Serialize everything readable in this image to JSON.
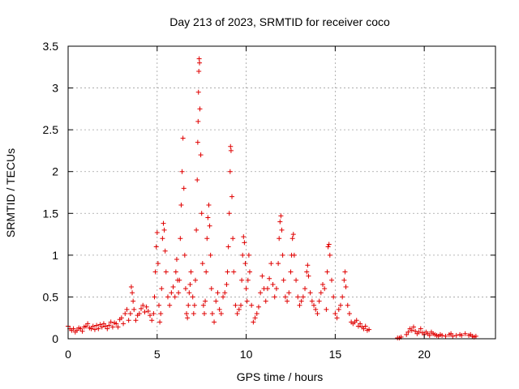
{
  "chart_data": {
    "type": "scatter",
    "title": "Day 213 of 2023, SRMTID for receiver coco",
    "xlabel": "GPS time / hours",
    "ylabel": "SRMTID / TECUs",
    "xlim": [
      0,
      24
    ],
    "ylim": [
      0,
      3.5
    ],
    "xticks": [
      0,
      5,
      10,
      15,
      20
    ],
    "xtick_labels": [
      "0",
      "5",
      "10",
      "15",
      "20"
    ],
    "yticks": [
      0,
      0.5,
      1,
      1.5,
      2,
      2.5,
      3,
      3.5
    ],
    "ytick_labels": [
      "0",
      "0.5",
      "1",
      "1.5",
      "2",
      "2.5",
      "3",
      "3.5"
    ],
    "grid": true,
    "marker": "+",
    "marker_color": "#e00000",
    "series": [
      {
        "name": "SRMTID",
        "points": [
          [
            0.0,
            0.15
          ],
          [
            0.1,
            0.12
          ],
          [
            0.2,
            0.1
          ],
          [
            0.3,
            0.12
          ],
          [
            0.4,
            0.08
          ],
          [
            0.5,
            0.1
          ],
          [
            0.6,
            0.13
          ],
          [
            0.7,
            0.12
          ],
          [
            0.8,
            0.09
          ],
          [
            0.9,
            0.14
          ],
          [
            1.0,
            0.15
          ],
          [
            1.1,
            0.18
          ],
          [
            1.2,
            0.13
          ],
          [
            1.3,
            0.12
          ],
          [
            1.4,
            0.15
          ],
          [
            1.5,
            0.11
          ],
          [
            1.6,
            0.16
          ],
          [
            1.7,
            0.12
          ],
          [
            1.8,
            0.17
          ],
          [
            1.9,
            0.14
          ],
          [
            2.0,
            0.18
          ],
          [
            2.1,
            0.15
          ],
          [
            2.2,
            0.12
          ],
          [
            2.3,
            0.16
          ],
          [
            2.4,
            0.2
          ],
          [
            2.5,
            0.14
          ],
          [
            2.6,
            0.19
          ],
          [
            2.7,
            0.18
          ],
          [
            2.8,
            0.14
          ],
          [
            2.9,
            0.23
          ],
          [
            3.0,
            0.25
          ],
          [
            3.1,
            0.18
          ],
          [
            3.2,
            0.3
          ],
          [
            3.3,
            0.35
          ],
          [
            3.4,
            0.22
          ],
          [
            3.5,
            0.3
          ],
          [
            3.55,
            0.62
          ],
          [
            3.6,
            0.55
          ],
          [
            3.65,
            0.45
          ],
          [
            3.7,
            0.35
          ],
          [
            3.8,
            0.22
          ],
          [
            3.9,
            0.28
          ],
          [
            4.0,
            0.3
          ],
          [
            4.1,
            0.36
          ],
          [
            4.2,
            0.4
          ],
          [
            4.3,
            0.32
          ],
          [
            4.4,
            0.38
          ],
          [
            4.5,
            0.33
          ],
          [
            4.6,
            0.28
          ],
          [
            4.7,
            0.22
          ],
          [
            4.8,
            0.3
          ],
          [
            4.85,
            0.5
          ],
          [
            4.9,
            0.8
          ],
          [
            4.95,
            1.1
          ],
          [
            5.0,
            1.27
          ],
          [
            5.05,
            0.9
          ],
          [
            5.1,
            0.4
          ],
          [
            5.15,
            0.2
          ],
          [
            5.2,
            0.3
          ],
          [
            5.25,
            0.6
          ],
          [
            5.3,
            1.2
          ],
          [
            5.35,
            1.38
          ],
          [
            5.4,
            1.3
          ],
          [
            5.45,
            1.05
          ],
          [
            5.5,
            0.8
          ],
          [
            5.6,
            0.5
          ],
          [
            5.7,
            0.4
          ],
          [
            5.8,
            0.55
          ],
          [
            5.9,
            0.62
          ],
          [
            6.0,
            0.5
          ],
          [
            6.05,
            0.8
          ],
          [
            6.1,
            0.95
          ],
          [
            6.15,
            0.7
          ],
          [
            6.2,
            0.55
          ],
          [
            6.25,
            0.7
          ],
          [
            6.3,
            1.2
          ],
          [
            6.35,
            1.6
          ],
          [
            6.4,
            2.0
          ],
          [
            6.45,
            2.4
          ],
          [
            6.5,
            1.8
          ],
          [
            6.55,
            1.0
          ],
          [
            6.6,
            0.6
          ],
          [
            6.65,
            0.3
          ],
          [
            6.7,
            0.25
          ],
          [
            6.75,
            0.4
          ],
          [
            6.8,
            0.55
          ],
          [
            6.85,
            0.65
          ],
          [
            6.9,
            0.8
          ],
          [
            7.0,
            0.5
          ],
          [
            7.05,
            0.3
          ],
          [
            7.1,
            0.4
          ],
          [
            7.15,
            0.7
          ],
          [
            7.2,
            1.3
          ],
          [
            7.25,
            1.9
          ],
          [
            7.28,
            2.35
          ],
          [
            7.3,
            2.6
          ],
          [
            7.32,
            2.95
          ],
          [
            7.34,
            3.2
          ],
          [
            7.36,
            3.35
          ],
          [
            7.38,
            3.3
          ],
          [
            7.4,
            2.75
          ],
          [
            7.45,
            2.2
          ],
          [
            7.5,
            1.5
          ],
          [
            7.55,
            0.9
          ],
          [
            7.6,
            0.4
          ],
          [
            7.65,
            0.3
          ],
          [
            7.7,
            0.45
          ],
          [
            7.75,
            0.8
          ],
          [
            7.8,
            1.2
          ],
          [
            7.85,
            1.45
          ],
          [
            7.9,
            1.6
          ],
          [
            7.95,
            1.35
          ],
          [
            8.0,
            1.0
          ],
          [
            8.05,
            0.6
          ],
          [
            8.1,
            0.3
          ],
          [
            8.2,
            0.2
          ],
          [
            8.3,
            0.45
          ],
          [
            8.4,
            0.55
          ],
          [
            8.5,
            0.35
          ],
          [
            8.6,
            0.3
          ],
          [
            8.7,
            0.5
          ],
          [
            8.8,
            0.55
          ],
          [
            8.9,
            0.65
          ],
          [
            8.95,
            0.8
          ],
          [
            9.0,
            1.1
          ],
          [
            9.05,
            1.5
          ],
          [
            9.1,
            2.0
          ],
          [
            9.12,
            2.3
          ],
          [
            9.15,
            2.25
          ],
          [
            9.2,
            1.7
          ],
          [
            9.25,
            1.2
          ],
          [
            9.3,
            0.8
          ],
          [
            9.4,
            0.4
          ],
          [
            9.5,
            0.3
          ],
          [
            9.6,
            0.35
          ],
          [
            9.7,
            0.4
          ],
          [
            9.75,
            0.7
          ],
          [
            9.8,
            1.0
          ],
          [
            9.85,
            1.22
          ],
          [
            9.9,
            1.15
          ],
          [
            9.95,
            0.9
          ],
          [
            10.0,
            0.6
          ],
          [
            10.05,
            0.45
          ],
          [
            10.1,
            0.7
          ],
          [
            10.15,
            1.0
          ],
          [
            10.2,
            0.8
          ],
          [
            10.3,
            0.4
          ],
          [
            10.4,
            0.2
          ],
          [
            10.5,
            0.25
          ],
          [
            10.6,
            0.3
          ],
          [
            10.7,
            0.38
          ],
          [
            10.8,
            0.55
          ],
          [
            10.9,
            0.75
          ],
          [
            11.0,
            0.6
          ],
          [
            11.1,
            0.45
          ],
          [
            11.2,
            0.6
          ],
          [
            11.3,
            0.72
          ],
          [
            11.4,
            0.9
          ],
          [
            11.5,
            0.65
          ],
          [
            11.6,
            0.5
          ],
          [
            11.7,
            0.6
          ],
          [
            11.8,
            0.9
          ],
          [
            11.85,
            1.2
          ],
          [
            11.9,
            1.4
          ],
          [
            11.95,
            1.47
          ],
          [
            12.0,
            1.3
          ],
          [
            12.05,
            1.0
          ],
          [
            12.1,
            0.7
          ],
          [
            12.2,
            0.5
          ],
          [
            12.3,
            0.45
          ],
          [
            12.4,
            0.55
          ],
          [
            12.5,
            0.8
          ],
          [
            12.55,
            1.0
          ],
          [
            12.6,
            1.2
          ],
          [
            12.65,
            1.25
          ],
          [
            12.7,
            1.0
          ],
          [
            12.8,
            0.7
          ],
          [
            12.9,
            0.5
          ],
          [
            13.0,
            0.4
          ],
          [
            13.1,
            0.45
          ],
          [
            13.2,
            0.5
          ],
          [
            13.3,
            0.6
          ],
          [
            13.4,
            0.8
          ],
          [
            13.45,
            0.88
          ],
          [
            13.5,
            0.75
          ],
          [
            13.6,
            0.55
          ],
          [
            13.7,
            0.45
          ],
          [
            13.8,
            0.4
          ],
          [
            13.9,
            0.35
          ],
          [
            14.0,
            0.3
          ],
          [
            14.1,
            0.45
          ],
          [
            14.2,
            0.55
          ],
          [
            14.3,
            0.65
          ],
          [
            14.4,
            0.6
          ],
          [
            14.5,
            0.35
          ],
          [
            14.55,
            0.8
          ],
          [
            14.6,
            1.1
          ],
          [
            14.65,
            1.13
          ],
          [
            14.7,
            1.0
          ],
          [
            14.8,
            0.7
          ],
          [
            14.9,
            0.5
          ],
          [
            15.0,
            0.3
          ],
          [
            15.1,
            0.25
          ],
          [
            15.2,
            0.35
          ],
          [
            15.3,
            0.4
          ],
          [
            15.4,
            0.5
          ],
          [
            15.5,
            0.7
          ],
          [
            15.55,
            0.8
          ],
          [
            15.6,
            0.62
          ],
          [
            15.7,
            0.4
          ],
          [
            15.8,
            0.3
          ],
          [
            15.9,
            0.2
          ],
          [
            16.0,
            0.18
          ],
          [
            16.1,
            0.2
          ],
          [
            16.2,
            0.22
          ],
          [
            16.3,
            0.15
          ],
          [
            16.4,
            0.18
          ],
          [
            16.5,
            0.14
          ],
          [
            16.6,
            0.12
          ],
          [
            16.7,
            0.15
          ],
          [
            16.8,
            0.1
          ],
          [
            16.9,
            0.11
          ],
          [
            18.5,
            0.01
          ],
          [
            18.6,
            0.01
          ],
          [
            18.7,
            0.02
          ],
          [
            19.0,
            0.05
          ],
          [
            19.1,
            0.08
          ],
          [
            19.2,
            0.12
          ],
          [
            19.3,
            0.1
          ],
          [
            19.4,
            0.14
          ],
          [
            19.5,
            0.09
          ],
          [
            19.6,
            0.06
          ],
          [
            19.7,
            0.08
          ],
          [
            19.8,
            0.12
          ],
          [
            19.9,
            0.07
          ],
          [
            20.0,
            0.05
          ],
          [
            20.1,
            0.08
          ],
          [
            20.2,
            0.06
          ],
          [
            20.3,
            0.04
          ],
          [
            20.4,
            0.08
          ],
          [
            20.5,
            0.06
          ],
          [
            20.6,
            0.05
          ],
          [
            20.7,
            0.04
          ],
          [
            20.8,
            0.03
          ],
          [
            20.9,
            0.05
          ],
          [
            21.0,
            0.04
          ],
          [
            21.2,
            0.03
          ],
          [
            21.4,
            0.05
          ],
          [
            21.5,
            0.06
          ],
          [
            21.6,
            0.03
          ],
          [
            21.8,
            0.04
          ],
          [
            22.0,
            0.05
          ],
          [
            22.1,
            0.04
          ],
          [
            22.3,
            0.06
          ],
          [
            22.5,
            0.04
          ],
          [
            22.6,
            0.05
          ],
          [
            22.7,
            0.03
          ],
          [
            22.8,
            0.02
          ],
          [
            22.9,
            0.03
          ]
        ]
      }
    ]
  }
}
